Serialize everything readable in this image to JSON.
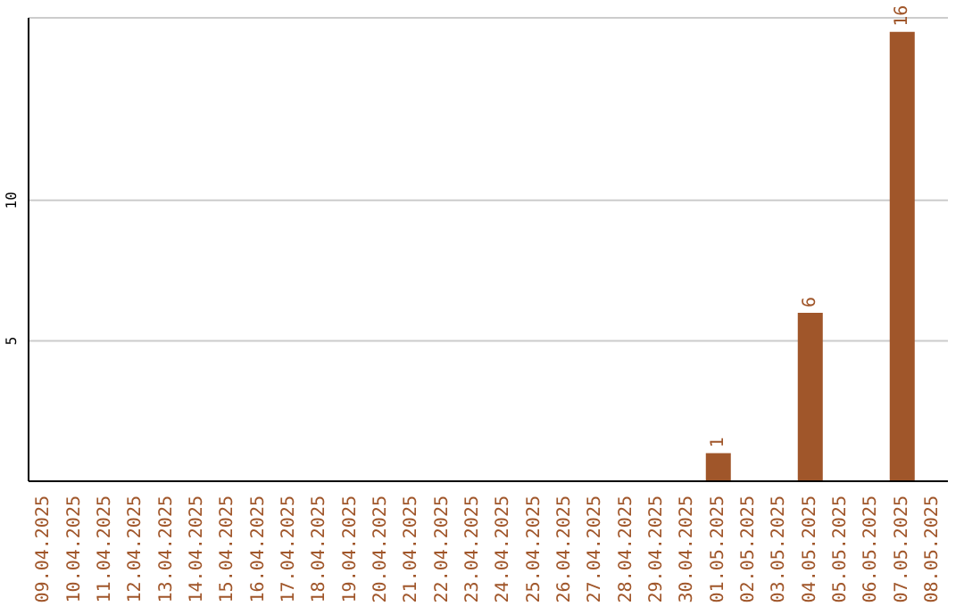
{
  "chart_data": {
    "type": "bar",
    "categories": [
      "09.04.2025",
      "10.04.2025",
      "11.04.2025",
      "12.04.2025",
      "13.04.2025",
      "14.04.2025",
      "15.04.2025",
      "16.04.2025",
      "17.04.2025",
      "18.04.2025",
      "19.04.2025",
      "20.04.2025",
      "21.04.2025",
      "22.04.2025",
      "23.04.2025",
      "24.04.2025",
      "25.04.2025",
      "26.04.2025",
      "27.04.2025",
      "28.04.2025",
      "29.04.2025",
      "30.04.2025",
      "01.05.2025",
      "02.05.2025",
      "03.05.2025",
      "04.05.2025",
      "05.05.2025",
      "06.05.2025",
      "07.05.2025",
      "08.05.2025"
    ],
    "values": [
      0,
      0,
      0,
      0,
      0,
      0,
      0,
      0,
      0,
      0,
      0,
      0,
      0,
      0,
      0,
      0,
      0,
      0,
      0,
      0,
      0,
      0,
      1,
      0,
      0,
      6,
      0,
      0,
      16,
      0
    ],
    "value_labels": [
      null,
      null,
      null,
      null,
      null,
      null,
      null,
      null,
      null,
      null,
      null,
      null,
      null,
      null,
      null,
      null,
      null,
      null,
      null,
      null,
      null,
      null,
      "1",
      null,
      null,
      "6",
      null,
      null,
      "16",
      null
    ],
    "color": "#a0562a",
    "ylim": [
      0,
      16.5
    ],
    "yticks": [
      5,
      10
    ],
    "grid": "y"
  }
}
